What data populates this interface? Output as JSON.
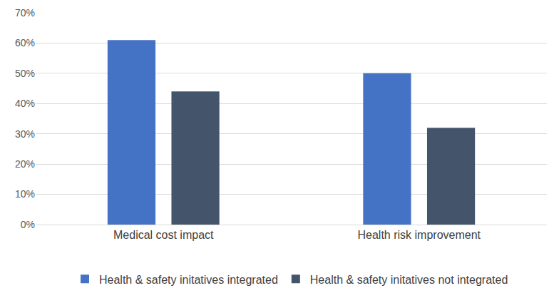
{
  "chart_data": {
    "type": "bar",
    "categories": [
      "Medical cost impact",
      "Health risk improvement"
    ],
    "series": [
      {
        "name": "Health & safety initatives integrated",
        "color": "#4472c4",
        "values": [
          61,
          50
        ]
      },
      {
        "name": "Health & safety initatives not integrated",
        "color": "#44546a",
        "values": [
          44,
          32
        ]
      }
    ],
    "ylim": [
      0,
      70
    ],
    "yticks": [
      {
        "value": 0,
        "label": "0%"
      },
      {
        "value": 10,
        "label": "10%"
      },
      {
        "value": 20,
        "label": "20%"
      },
      {
        "value": 30,
        "label": "30%"
      },
      {
        "value": 40,
        "label": "40%"
      },
      {
        "value": 50,
        "label": "50%"
      },
      {
        "value": 60,
        "label": "60%"
      },
      {
        "value": 70,
        "label": "70%"
      }
    ],
    "grid": true,
    "legend": "bottom"
  }
}
